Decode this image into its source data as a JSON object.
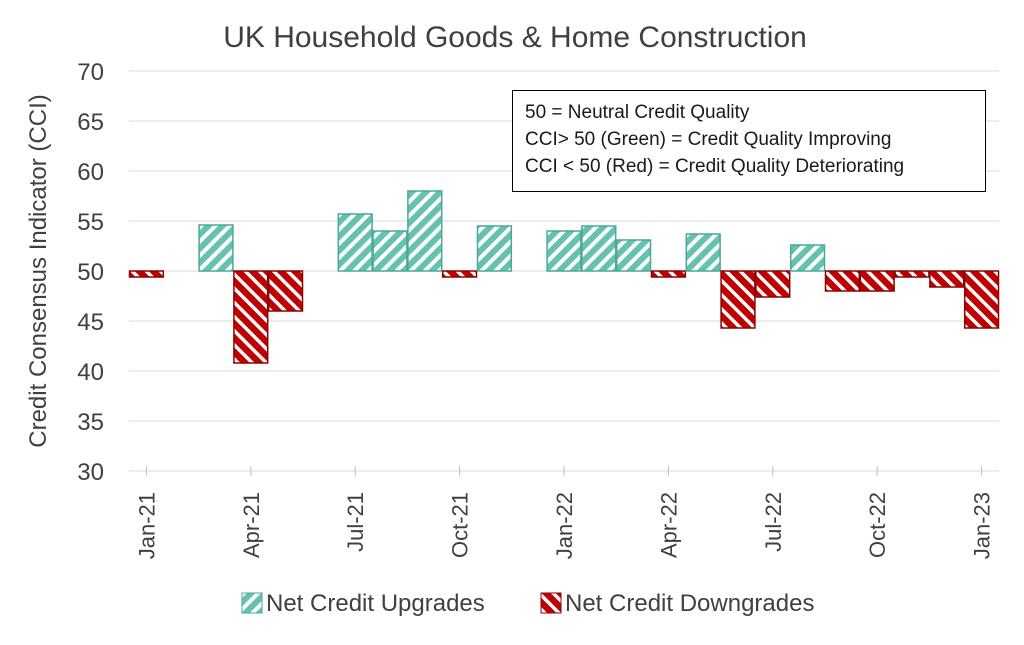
{
  "chart_data": {
    "type": "bar",
    "title": "UK Household Goods & Home Construction",
    "ylabel": "Credit Consensus Indicator (CCI)",
    "xlabel": "",
    "ylim": [
      30,
      70
    ],
    "yticks": [
      30,
      35,
      40,
      45,
      50,
      55,
      60,
      65,
      70
    ],
    "baseline": 50,
    "grid": true,
    "legend_position": "bottom",
    "colors": {
      "upgrade_fill": "#66c2b0",
      "upgrade_stroke": "#4aa898",
      "downgrade_fill": "#c00000",
      "downgrade_stroke": "#8b0000",
      "grid": "#d9d9d9",
      "text": "#404040"
    },
    "categories": [
      "Jan-21",
      "Feb-21",
      "Mar-21",
      "Apr-21",
      "May-21",
      "Jun-21",
      "Jul-21",
      "Aug-21",
      "Sep-21",
      "Oct-21",
      "Nov-21",
      "Dec-21",
      "Jan-22",
      "Feb-22",
      "Mar-22",
      "Apr-22",
      "May-22",
      "Jun-22",
      "Jul-22",
      "Aug-22",
      "Sep-22",
      "Oct-22",
      "Nov-22",
      "Dec-22",
      "Jan-23"
    ],
    "tick_labels": [
      "Jan-21",
      "Apr-21",
      "Jul-21",
      "Oct-21",
      "Jan-22",
      "Apr-22",
      "Jul-22",
      "Oct-22",
      "Jan-23"
    ],
    "values": [
      49.4,
      null,
      54.6,
      40.8,
      46.0,
      null,
      55.7,
      54.0,
      58.0,
      49.4,
      54.5,
      null,
      54.0,
      54.5,
      53.1,
      49.4,
      53.7,
      44.3,
      47.4,
      52.6,
      48.0,
      48.0,
      49.4,
      48.4,
      44.3
    ],
    "legend": [
      {
        "key": "up",
        "label": "Net Credit Upgrades"
      },
      {
        "key": "down",
        "label": "Net Credit Downgrades"
      }
    ],
    "annotation": [
      "50 = Neutral Credit Quality",
      "CCI> 50 (Green) = Credit Quality Improving",
      "CCI < 50 (Red) = Credit Quality Deteriorating"
    ]
  }
}
